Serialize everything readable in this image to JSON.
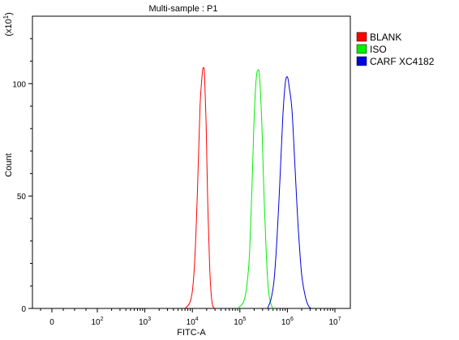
{
  "chart_data": {
    "type": "line",
    "title": "Multi-sample : P1",
    "xlabel": "FITC-A",
    "ylabel": "Count",
    "y_multiplier": {
      "base": "(x10",
      "exp": "1",
      "close": ")"
    },
    "x_scale": "biexponential",
    "y_scale": "linear",
    "ylim": [
      0,
      130
    ],
    "xlim": [
      -50,
      10000000
    ],
    "grid": false,
    "legend_position": "top-right",
    "x_ticks": [
      {
        "value": 0,
        "base": "0",
        "exp": ""
      },
      {
        "value": 100,
        "base": "10",
        "exp": "2"
      },
      {
        "value": 1000,
        "base": "10",
        "exp": "3"
      },
      {
        "value": 10000,
        "base": "10",
        "exp": "4"
      },
      {
        "value": 100000,
        "base": "10",
        "exp": "5"
      },
      {
        "value": 1000000,
        "base": "10",
        "exp": "6"
      },
      {
        "value": 10000000,
        "base": "10",
        "exp": "7"
      }
    ],
    "y_ticks": [
      {
        "value": 0,
        "label": "0"
      },
      {
        "value": 50,
        "label": "50"
      },
      {
        "value": 100,
        "label": "100"
      }
    ],
    "series": [
      {
        "name": "BLANK",
        "color": "#ff0000",
        "x": [
          7000,
          9000,
          10500,
          12000,
          13500,
          14500,
          15500,
          16500,
          17200,
          18000,
          19500,
          21000,
          23000,
          25000,
          27000,
          30000
        ],
        "y": [
          0,
          3,
          12,
          35,
          68,
          90,
          100,
          106,
          107,
          104,
          82,
          48,
          20,
          6,
          1,
          0
        ]
      },
      {
        "name": "ISO",
        "color": "#00ee00",
        "x": [
          90000,
          120000,
          140000,
          160000,
          180000,
          200000,
          220000,
          240000,
          260000,
          290000,
          320000,
          360000,
          400000,
          450000,
          500000
        ],
        "y": [
          0,
          3,
          10,
          25,
          55,
          85,
          102,
          106,
          103,
          82,
          52,
          24,
          8,
          2,
          0
        ]
      },
      {
        "name": "CARF XC4182",
        "color": "#0000dd",
        "x": [
          380000,
          450000,
          520000,
          600000,
          700000,
          800000,
          900000,
          1000000,
          1100000,
          1250000,
          1450000,
          1700000,
          2000000,
          2400000,
          2800000,
          3200000
        ],
        "y": [
          0,
          4,
          12,
          30,
          58,
          85,
          100,
          103,
          98,
          88,
          62,
          35,
          15,
          5,
          1,
          0
        ]
      }
    ]
  }
}
